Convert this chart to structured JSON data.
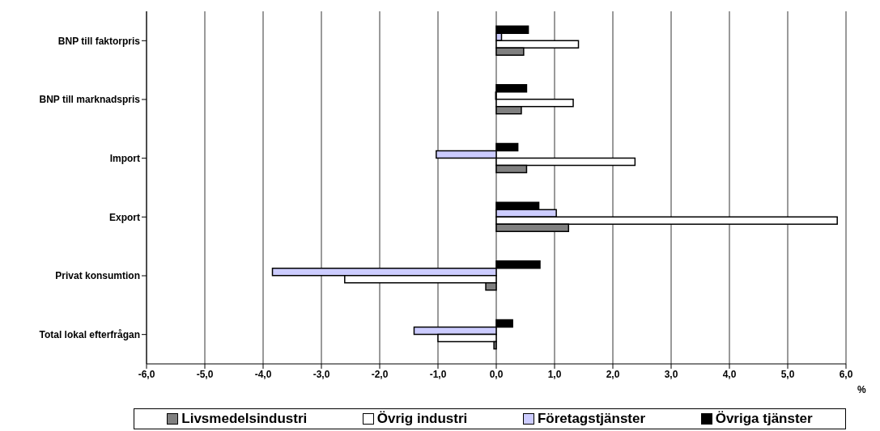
{
  "chart_data": {
    "type": "bar",
    "orientation": "horizontal",
    "xlabel": "%",
    "categories": [
      "BNP till faktorpris",
      "BNP till marknadspris",
      "Import",
      "Export",
      "Privat konsumtion",
      "Total lokal efterfrågan"
    ],
    "series": [
      {
        "name": "Livsmedelsindustri",
        "color": "#808080",
        "values": [
          0.47,
          0.43,
          0.52,
          1.24,
          -0.18,
          -0.04
        ]
      },
      {
        "name": "Övrig industri",
        "color": "#ffffff",
        "values": [
          1.41,
          1.32,
          2.38,
          5.85,
          -2.6,
          -1.0
        ]
      },
      {
        "name": "Företagstjänster",
        "color": "#ccccff",
        "values": [
          0.09,
          -0.01,
          -1.03,
          1.03,
          -3.84,
          -1.41
        ]
      },
      {
        "name": "Övriga tjänster",
        "color": "#000000",
        "values": [
          0.55,
          0.52,
          0.37,
          0.73,
          0.75,
          0.28
        ]
      }
    ],
    "xlim": [
      -6,
      6
    ],
    "xticks": [
      {
        "value": -6,
        "label": "-6,0"
      },
      {
        "value": -5,
        "label": "-5,0"
      },
      {
        "value": -4,
        "label": "-4,0"
      },
      {
        "value": -3,
        "label": "-3,0"
      },
      {
        "value": -2,
        "label": "-2,0"
      },
      {
        "value": -1,
        "label": "-1,0"
      },
      {
        "value": 0,
        "label": "0,0"
      },
      {
        "value": 1,
        "label": "1,0"
      },
      {
        "value": 2,
        "label": "2,0"
      },
      {
        "value": 3,
        "label": "3,0"
      },
      {
        "value": 4,
        "label": "4,0"
      },
      {
        "value": 5,
        "label": "5,0"
      },
      {
        "value": 6,
        "label": "6,0"
      }
    ],
    "grid": "x",
    "legend": "bottom"
  }
}
